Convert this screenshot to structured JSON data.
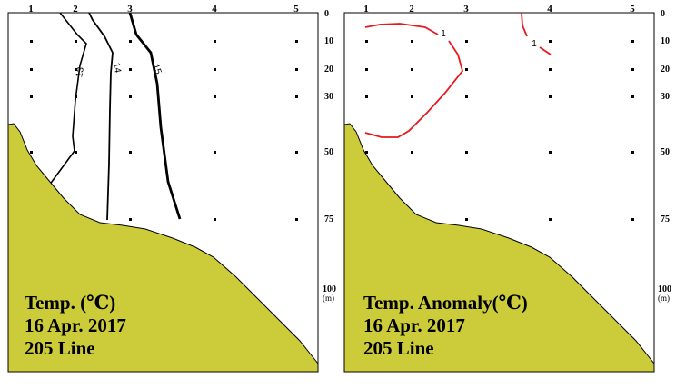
{
  "chart_data": [
    {
      "type": "contour",
      "title_lines": [
        "Temp. (℃)",
        "16 Apr. 2017",
        "205 Line"
      ],
      "stations": [
        "1",
        "2",
        "3",
        "4",
        "5"
      ],
      "depth_ticks": [
        "0",
        "10",
        "20",
        "30",
        "50",
        "75",
        "100"
      ],
      "depth_unit": "(m)",
      "contours": [
        {
          "level": "13",
          "label": "13"
        },
        {
          "level": "14",
          "label": "14"
        },
        {
          "level": "15",
          "label": "15"
        }
      ],
      "colors": {
        "contour": "#000000",
        "seabed": "#cccc3a"
      }
    },
    {
      "type": "contour",
      "title_lines": [
        "Temp. Anomaly(℃)",
        "16 Apr. 2017",
        "205 Line"
      ],
      "stations": [
        "1",
        "2",
        "3",
        "4",
        "5"
      ],
      "depth_ticks": [
        "0",
        "10",
        "20",
        "30",
        "50",
        "75",
        "100"
      ],
      "depth_unit": "(m)",
      "contours": [
        {
          "level": "1",
          "label": "1"
        },
        {
          "level": "1",
          "label": "1"
        }
      ],
      "colors": {
        "contour": "#e8191d",
        "seabed": "#cccc3a"
      }
    }
  ]
}
